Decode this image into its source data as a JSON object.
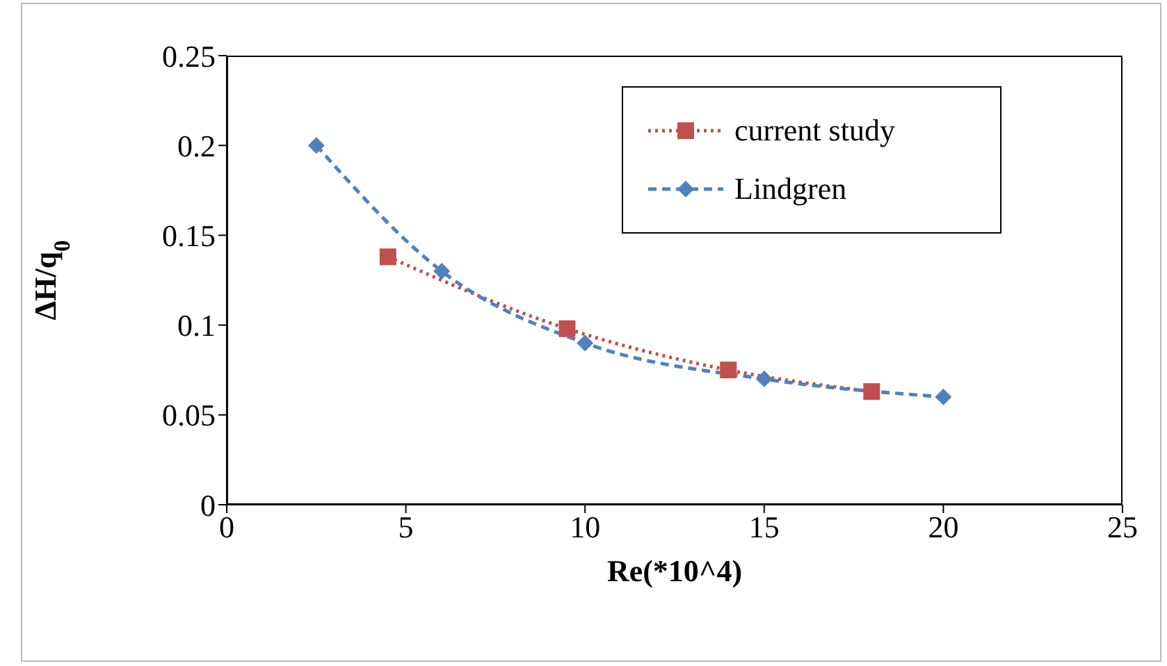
{
  "chart_data": {
    "type": "line",
    "xlabel": "Re(*10^4)",
    "ylabel": "ΔH/q$_{0}$",
    "xlim": [
      0,
      25
    ],
    "xticks": [
      0,
      5,
      10,
      15,
      20,
      25
    ],
    "ylim": [
      0,
      0.25
    ],
    "yticks": [
      0,
      0.05,
      0.1,
      0.15,
      0.2,
      0.25
    ],
    "legend": "top right",
    "series": [
      {
        "name": "current study",
        "color": "#c0504d",
        "marker": "square",
        "line_style": "dotted",
        "x": [
          4.5,
          9.5,
          14,
          18
        ],
        "values": [
          0.138,
          0.098,
          0.075,
          0.063
        ]
      },
      {
        "name": "Lindgren",
        "color": "#4f81bd",
        "marker": "diamond",
        "line_style": "dashed",
        "x": [
          2.5,
          6,
          10,
          15,
          20
        ],
        "values": [
          0.2,
          0.13,
          0.09,
          0.07,
          0.06
        ]
      }
    ]
  }
}
